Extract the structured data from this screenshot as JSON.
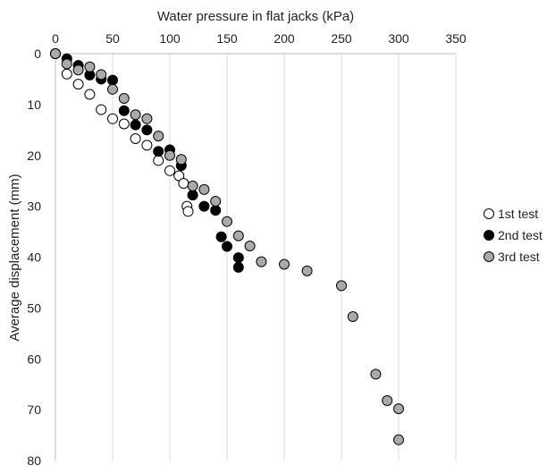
{
  "chart_data": {
    "type": "scatter",
    "title": "",
    "xlabel": "Water pressure in flat jacks (kPa)",
    "ylabel": "Average displacement (mm)",
    "xlim": [
      0,
      350
    ],
    "ylim": [
      0,
      80
    ],
    "y_inverted": true,
    "x_axis_position": "top",
    "x_ticks": [
      "0",
      "50",
      "100",
      "150",
      "200",
      "250",
      "300",
      "350"
    ],
    "y_ticks": [
      "0",
      "10",
      "20",
      "30",
      "40",
      "50",
      "60",
      "70",
      "80"
    ],
    "grid": "vertical",
    "legend_position": "right",
    "series": [
      {
        "name": "1st test",
        "color": "#ffffff",
        "points": [
          [
            0,
            0
          ],
          [
            10,
            4
          ],
          [
            20,
            6
          ],
          [
            30,
            8
          ],
          [
            40,
            11
          ],
          [
            50,
            12.8
          ],
          [
            60,
            13.8
          ],
          [
            70,
            16.7
          ],
          [
            80,
            18
          ],
          [
            90,
            21
          ],
          [
            100,
            23
          ],
          [
            108,
            24
          ],
          [
            112,
            25.5
          ],
          [
            115,
            30
          ],
          [
            116,
            31
          ]
        ]
      },
      {
        "name": "2nd test",
        "color": "#000000",
        "points": [
          [
            0,
            0
          ],
          [
            10,
            1
          ],
          [
            20,
            2.3
          ],
          [
            30,
            4.2
          ],
          [
            40,
            5
          ],
          [
            50,
            5.2
          ],
          [
            60,
            11.2
          ],
          [
            70,
            14
          ],
          [
            80,
            15
          ],
          [
            90,
            19.2
          ],
          [
            100,
            18.9
          ],
          [
            110,
            22
          ],
          [
            120,
            27.8
          ],
          [
            130,
            30
          ],
          [
            140,
            30.8
          ],
          [
            145,
            36
          ],
          [
            150,
            37.9
          ],
          [
            160,
            40.1
          ],
          [
            160,
            42
          ]
        ]
      },
      {
        "name": "3rd test",
        "color": "#aaaaaa",
        "points": [
          [
            0,
            0
          ],
          [
            10,
            2
          ],
          [
            20,
            3.2
          ],
          [
            30,
            2.6
          ],
          [
            40,
            4.1
          ],
          [
            50,
            7
          ],
          [
            60,
            8.8
          ],
          [
            70,
            12
          ],
          [
            80,
            12.8
          ],
          [
            90,
            16.2
          ],
          [
            100,
            20
          ],
          [
            110,
            20.8
          ],
          [
            120,
            26
          ],
          [
            130,
            26.7
          ],
          [
            140,
            29
          ],
          [
            150,
            33
          ],
          [
            160,
            35.8
          ],
          [
            170,
            37.8
          ],
          [
            180,
            40.9
          ],
          [
            200,
            41.4
          ],
          [
            220,
            42.7
          ],
          [
            250,
            45.6
          ],
          [
            260,
            51.7
          ],
          [
            280,
            63
          ],
          [
            290,
            68.2
          ],
          [
            300,
            69.8
          ],
          [
            300,
            75.9
          ]
        ]
      }
    ]
  }
}
